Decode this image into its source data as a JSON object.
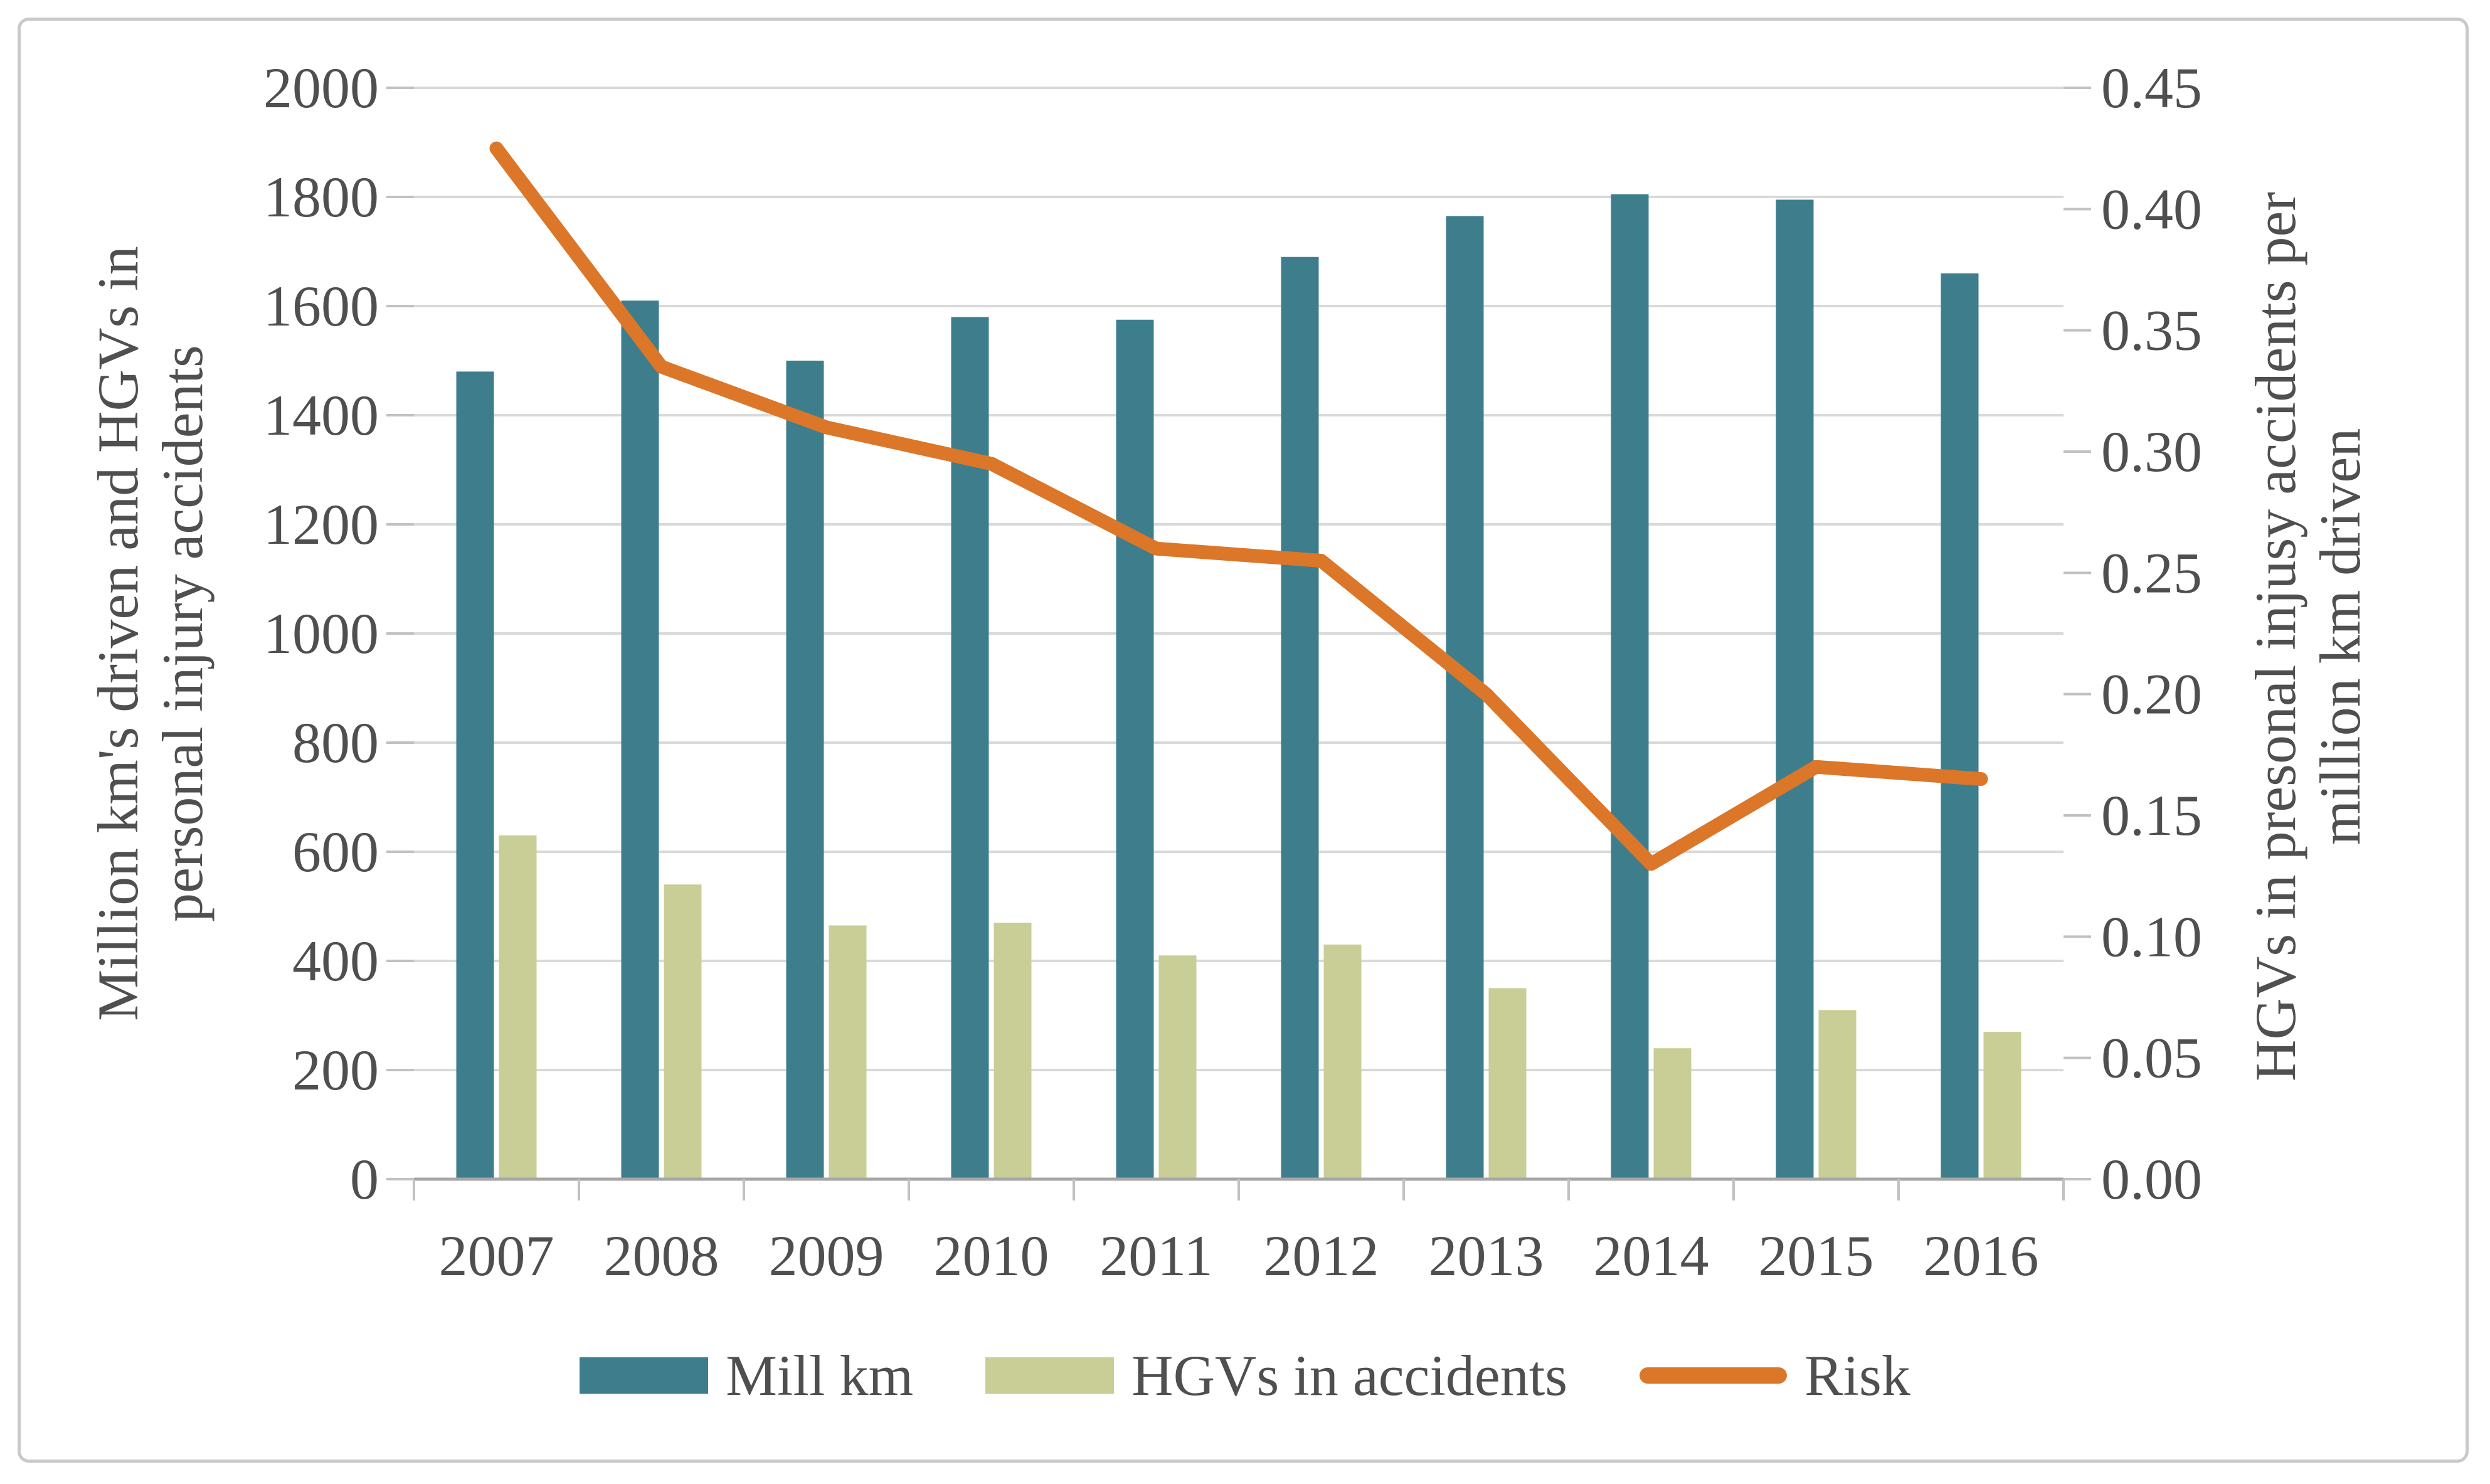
{
  "chart_data": {
    "type": "bar+line combo",
    "categories": [
      "2007",
      "2008",
      "2009",
      "2010",
      "2011",
      "2012",
      "2013",
      "2014",
      "2015",
      "2016"
    ],
    "series": [
      {
        "name": "Mill km",
        "type": "bar",
        "axis": "left",
        "values": [
          1480,
          1610,
          1500,
          1580,
          1575,
          1690,
          1765,
          1805,
          1795,
          1660
        ]
      },
      {
        "name": "HGVs in accidents",
        "type": "bar",
        "axis": "left",
        "values": [
          630,
          540,
          465,
          470,
          410,
          430,
          350,
          240,
          310,
          270
        ]
      },
      {
        "name": "Risk",
        "type": "line",
        "axis": "right",
        "values": [
          0.425,
          0.335,
          0.31,
          0.295,
          0.26,
          0.255,
          0.2,
          0.13,
          0.17,
          0.165
        ]
      }
    ],
    "left_axis": {
      "title_line1": "Million km's driven and HGVs in",
      "title_line2": "personal injury accidents",
      "min": 0,
      "max": 2000,
      "step": 200,
      "tick_labels": [
        "2000",
        "1800",
        "1600",
        "1400",
        "1200",
        "1000",
        "800",
        "600",
        "400",
        "200",
        "0"
      ]
    },
    "right_axis": {
      "title_line1": "HGVs in presonal injusy accidents per",
      "title_line2": "million km driven",
      "min": 0,
      "max": 0.45,
      "step": 0.05,
      "tick_labels": [
        "0.45",
        "0.40",
        "0.35",
        "0.30",
        "0.25",
        "0.20",
        "0.15",
        "0.10",
        "0.05",
        "0.00"
      ]
    },
    "legend": {
      "position": "bottom",
      "items": [
        "Mill km",
        "HGVs in accidents",
        "Risk"
      ]
    },
    "grid": true,
    "colors": {
      "mill_km": "#3e7e8c",
      "hgv_accidents": "#c9ce96",
      "risk": "#dc7628",
      "gridline": "#d9d9d9",
      "axis_line": "#a6a6a6",
      "tick_mark": "#c1c1c1",
      "text": "#4f4f4f",
      "frame": "#c9c9c9"
    }
  }
}
